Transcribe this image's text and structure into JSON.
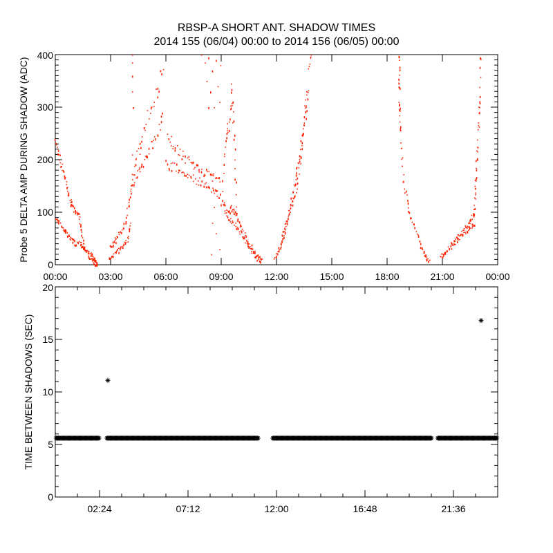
{
  "title": "RBSP-A SHORT ANT. SHADOW TIMES",
  "subtitle": "2014 155 (06/04) 00:00 to 2014 156 (06/05) 00:00",
  "chart_data": [
    {
      "type": "scatter",
      "ylabel": "Probe 5 DELTA AMP DURING SHADOW (ADC)",
      "xlim_hours": [
        0,
        24
      ],
      "ylim": [
        0,
        400
      ],
      "xticks": [
        "00:00",
        "03:00",
        "06:00",
        "09:00",
        "12:00",
        "15:00",
        "18:00",
        "21:00",
        "00:00"
      ],
      "yticks": [
        "0",
        "100",
        "200",
        "300",
        "400"
      ],
      "color": "#ff2000",
      "series": [
        {
          "points": [
            [
              0,
              230
            ],
            [
              0.2,
              205
            ],
            [
              0.44,
              178
            ],
            [
              0.6,
              150
            ],
            [
              0.81,
              120
            ],
            [
              1.0,
              105
            ],
            [
              1.25,
              94
            ],
            [
              1.4,
              60
            ],
            [
              1.6,
              28
            ],
            [
              1.9,
              15
            ],
            [
              2.1,
              6
            ],
            [
              2.25,
              0
            ]
          ]
        },
        {
          "points": [
            [
              0,
              87
            ],
            [
              0.2,
              80
            ],
            [
              0.44,
              70
            ],
            [
              0.6,
              60
            ],
            [
              0.81,
              50
            ],
            [
              1.06,
              41
            ],
            [
              1.37,
              42
            ],
            [
              1.6,
              28
            ],
            [
              1.94,
              20
            ],
            [
              2.1,
              10
            ],
            [
              2.25,
              2
            ]
          ]
        },
        {
          "points": [
            [
              2.88,
              13
            ],
            [
              3.2,
              22
            ],
            [
              3.56,
              34
            ],
            [
              3.88,
              46
            ],
            [
              4.06,
              80
            ]
          ]
        },
        {
          "points": [
            [
              2.94,
              33
            ],
            [
              3.2,
              45
            ],
            [
              3.44,
              59
            ],
            [
              3.81,
              83
            ],
            [
              4.0,
              125
            ],
            [
              4.13,
              159
            ],
            [
              4.44,
              208
            ],
            [
              4.81,
              260
            ],
            [
              5.31,
              317
            ],
            [
              5.81,
              366
            ]
          ]
        },
        {
          "points": [
            [
              4.2,
              150
            ],
            [
              4.6,
              185
            ],
            [
              5.0,
              215
            ],
            [
              5.4,
              245
            ],
            [
              5.8,
              285
            ]
          ]
        },
        {
          "points": [
            [
              4.16,
              400
            ],
            [
              4.16,
              385
            ],
            [
              4.16,
              360
            ],
            [
              4.16,
              330
            ],
            [
              4.2,
              300
            ],
            [
              4.16,
              210
            ]
          ]
        },
        {
          "points": [
            [
              6.1,
              240
            ],
            [
              6.5,
              225
            ],
            [
              7.0,
              205
            ],
            [
              7.5,
              190
            ],
            [
              8.0,
              178
            ],
            [
              8.5,
              168
            ],
            [
              8.9,
              160
            ]
          ]
        },
        {
          "points": [
            [
              6.0,
              195
            ],
            [
              6.5,
              185
            ],
            [
              7.0,
              175
            ],
            [
              7.5,
              165
            ],
            [
              8.0,
              155
            ],
            [
              8.5,
              140
            ],
            [
              8.9,
              135
            ]
          ]
        },
        {
          "points": [
            [
              7.9,
              400
            ],
            [
              8.1,
              385
            ],
            [
              8.3,
              395
            ],
            [
              8.2,
              350
            ],
            [
              8.5,
              370
            ],
            [
              8.4,
              330
            ],
            [
              8.7,
              390
            ],
            [
              8.6,
              300
            ],
            [
              8.8,
              340
            ],
            [
              8.95,
              380
            ],
            [
              8.3,
              300
            ],
            [
              8.9,
              310
            ]
          ]
        },
        {
          "points": [
            [
              8.9,
              30
            ],
            [
              8.7,
              60
            ],
            [
              8.6,
              110
            ],
            [
              8.45,
              20
            ],
            [
              8.5,
              80
            ]
          ]
        },
        {
          "points": [
            [
              9.0,
              110
            ],
            [
              9.2,
              230
            ],
            [
              9.4,
              270
            ],
            [
              9.55,
              335
            ],
            [
              9.7,
              240
            ],
            [
              9.8,
              98
            ]
          ]
        },
        {
          "points": [
            [
              9.06,
              120
            ],
            [
              9.3,
              95
            ],
            [
              9.55,
              110
            ],
            [
              9.8,
              98
            ],
            [
              10.05,
              72
            ],
            [
              10.42,
              46
            ],
            [
              10.8,
              24
            ],
            [
              11.18,
              8
            ]
          ]
        },
        {
          "points": [
            [
              9.3,
              90
            ],
            [
              9.7,
              80
            ],
            [
              10.0,
              62
            ],
            [
              10.4,
              38
            ],
            [
              10.8,
              18
            ],
            [
              11.1,
              3
            ]
          ]
        },
        {
          "points": [
            [
              11.875,
              8
            ],
            [
              12.1,
              30
            ],
            [
              12.375,
              54
            ],
            [
              12.6,
              90
            ],
            [
              12.86,
              133
            ],
            [
              13.05,
              170
            ],
            [
              13.24,
              208
            ],
            [
              13.45,
              270
            ],
            [
              13.6,
              317
            ],
            [
              13.84,
              396
            ]
          ]
        },
        {
          "points": [
            [
              12.2,
              45
            ],
            [
              12.5,
              80
            ],
            [
              12.8,
              110
            ],
            [
              13.1,
              150
            ],
            [
              13.4,
              230
            ],
            [
              13.7,
              330
            ]
          ]
        },
        {
          "points": [
            [
              18.63,
              393
            ],
            [
              18.65,
              340
            ],
            [
              18.66,
              296
            ],
            [
              18.7,
              240
            ],
            [
              18.86,
              164
            ],
            [
              19.12,
              106
            ],
            [
              19.5,
              72
            ],
            [
              19.87,
              33
            ],
            [
              20.05,
              18
            ],
            [
              20.25,
              6
            ]
          ]
        },
        {
          "points": [
            [
              20.88,
              14
            ],
            [
              21.2,
              28
            ],
            [
              21.63,
              46
            ],
            [
              21.9,
              58
            ],
            [
              22.24,
              72
            ],
            [
              22.5,
              85
            ],
            [
              22.69,
              99
            ],
            [
              22.8,
              164
            ],
            [
              22.95,
              274
            ],
            [
              23.06,
              392
            ]
          ]
        },
        {
          "points": [
            [
              21.0,
              20
            ],
            [
              21.5,
              35
            ],
            [
              22.0,
              55
            ],
            [
              22.4,
              68
            ],
            [
              22.7,
              80
            ],
            [
              22.85,
              200
            ],
            [
              23.0,
              330
            ]
          ]
        }
      ]
    },
    {
      "type": "scatter",
      "ylabel": "TIME BETWEEN SHADOWS (SEC)",
      "xlim_hours": [
        0,
        24
      ],
      "ylim": [
        0,
        20
      ],
      "xticks": [
        "02:24",
        "07:12",
        "12:00",
        "16:48",
        "21:36"
      ],
      "yticks": [
        "0",
        "5",
        "10",
        "15",
        "20"
      ],
      "color": "#000000",
      "marker": "asterisk",
      "baseline_value": 5.6,
      "baseline_ranges_hours": [
        [
          0,
          2.4
        ],
        [
          2.75,
          11.05
        ],
        [
          11.75,
          20.45
        ],
        [
          20.7,
          24
        ]
      ],
      "outliers": [
        [
          2.85,
          11.1
        ],
        [
          23.1,
          16.8
        ]
      ]
    }
  ]
}
